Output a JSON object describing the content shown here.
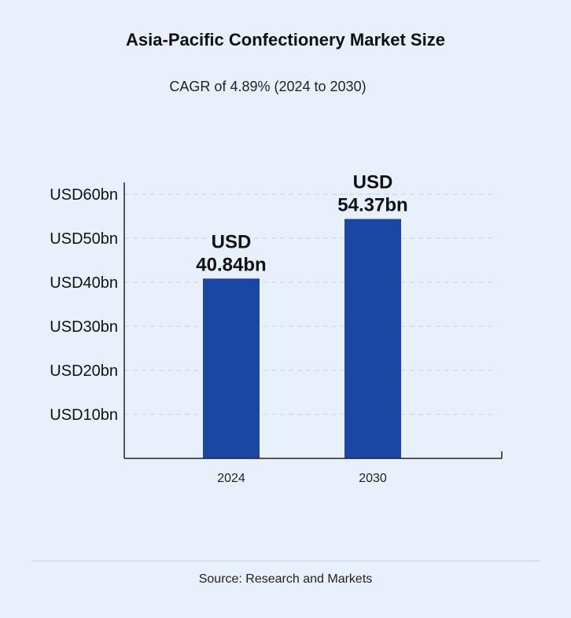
{
  "chart_data": {
    "type": "bar",
    "title": "Asia-Pacific Confectionery Market Size",
    "subtitle": "CAGR of 4.89% (2024 to 2030)",
    "categories": [
      "2024",
      "2030"
    ],
    "values": [
      40.84,
      54.37
    ],
    "data_labels": [
      [
        "USD",
        "40.84bn"
      ],
      [
        "USD",
        "54.37bn"
      ]
    ],
    "y_ticks": [
      {
        "value": 10,
        "label": "USD10bn"
      },
      {
        "value": 20,
        "label": "USD20bn"
      },
      {
        "value": 30,
        "label": "USD30bn"
      },
      {
        "value": 40,
        "label": "USD40bn"
      },
      {
        "value": 50,
        "label": "USD50bn"
      },
      {
        "value": 60,
        "label": "USD60bn"
      }
    ],
    "ylim": [
      0,
      60
    ],
    "grid": true,
    "xlabel": "",
    "ylabel": "",
    "bar_color": "#1a47a3",
    "grid_color": "#c9d2de"
  },
  "source": "Source: Research and Markets"
}
